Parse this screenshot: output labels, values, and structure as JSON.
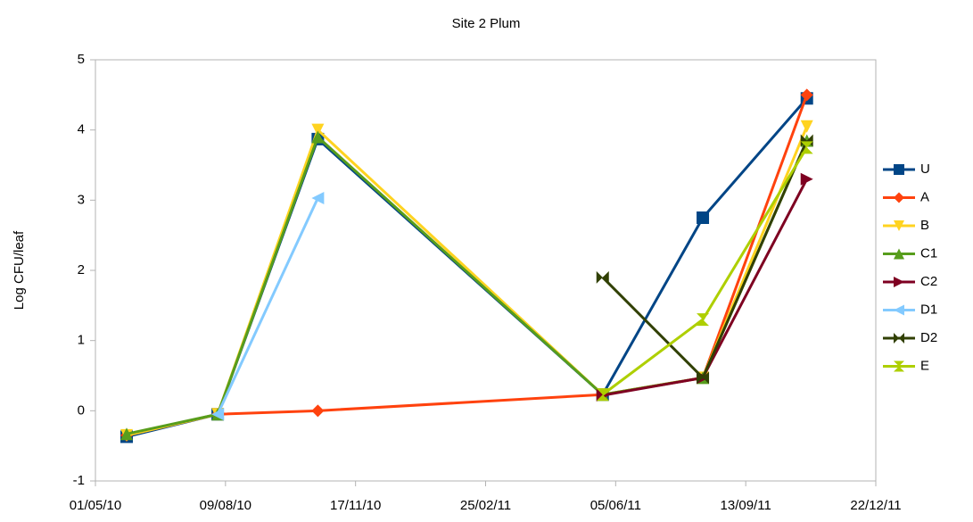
{
  "chart_data": {
    "type": "line",
    "title": "Site 2 Plum",
    "y_label": "Log CFU/leaf",
    "x": [
      "25/05/10",
      "03/08/10",
      "19/10/10",
      "26/05/11",
      "11/08/11",
      "30/10/11"
    ],
    "xlim": [
      "01/05/10",
      "22/12/11"
    ],
    "xticks": [
      "01/05/10",
      "09/08/10",
      "17/11/10",
      "25/02/11",
      "05/06/11",
      "13/09/11",
      "22/12/11"
    ],
    "ylim": [
      -1,
      5
    ],
    "yticks": [
      -1,
      0,
      1,
      2,
      3,
      4,
      5
    ],
    "grid": false,
    "legend": "right",
    "series": [
      {
        "name": "U",
        "color": "#004586",
        "marker": "square",
        "values": [
          -0.37,
          -0.05,
          3.87,
          0.23,
          2.75,
          4.45
        ]
      },
      {
        "name": "A",
        "color": "#ff420e",
        "marker": "diamond",
        "values": [
          -0.35,
          -0.05,
          0.0,
          0.23,
          0.47,
          4.5
        ]
      },
      {
        "name": "B",
        "color": "#ffd320",
        "marker": "triangle-down",
        "values": [
          -0.35,
          -0.05,
          4.0,
          0.23,
          0.47,
          4.05
        ]
      },
      {
        "name": "C1",
        "color": "#579d1c",
        "marker": "triangle-up",
        "values": [
          -0.33,
          -0.05,
          3.9,
          0.23,
          0.47,
          3.85
        ]
      },
      {
        "name": "C2",
        "color": "#7e0021",
        "marker": "triangle-right",
        "values": [
          null,
          null,
          null,
          0.22,
          0.47,
          3.3
        ]
      },
      {
        "name": "D1",
        "color": "#83caff",
        "marker": "triangle-left",
        "values": [
          null,
          -0.05,
          3.03,
          null,
          null,
          null
        ]
      },
      {
        "name": "D2",
        "color": "#314004",
        "marker": "bowtie",
        "values": [
          null,
          null,
          null,
          1.9,
          0.47,
          3.85
        ]
      },
      {
        "name": "E",
        "color": "#aecf00",
        "marker": "hourglass",
        "values": [
          null,
          null,
          null,
          0.23,
          1.3,
          3.75
        ]
      }
    ]
  }
}
